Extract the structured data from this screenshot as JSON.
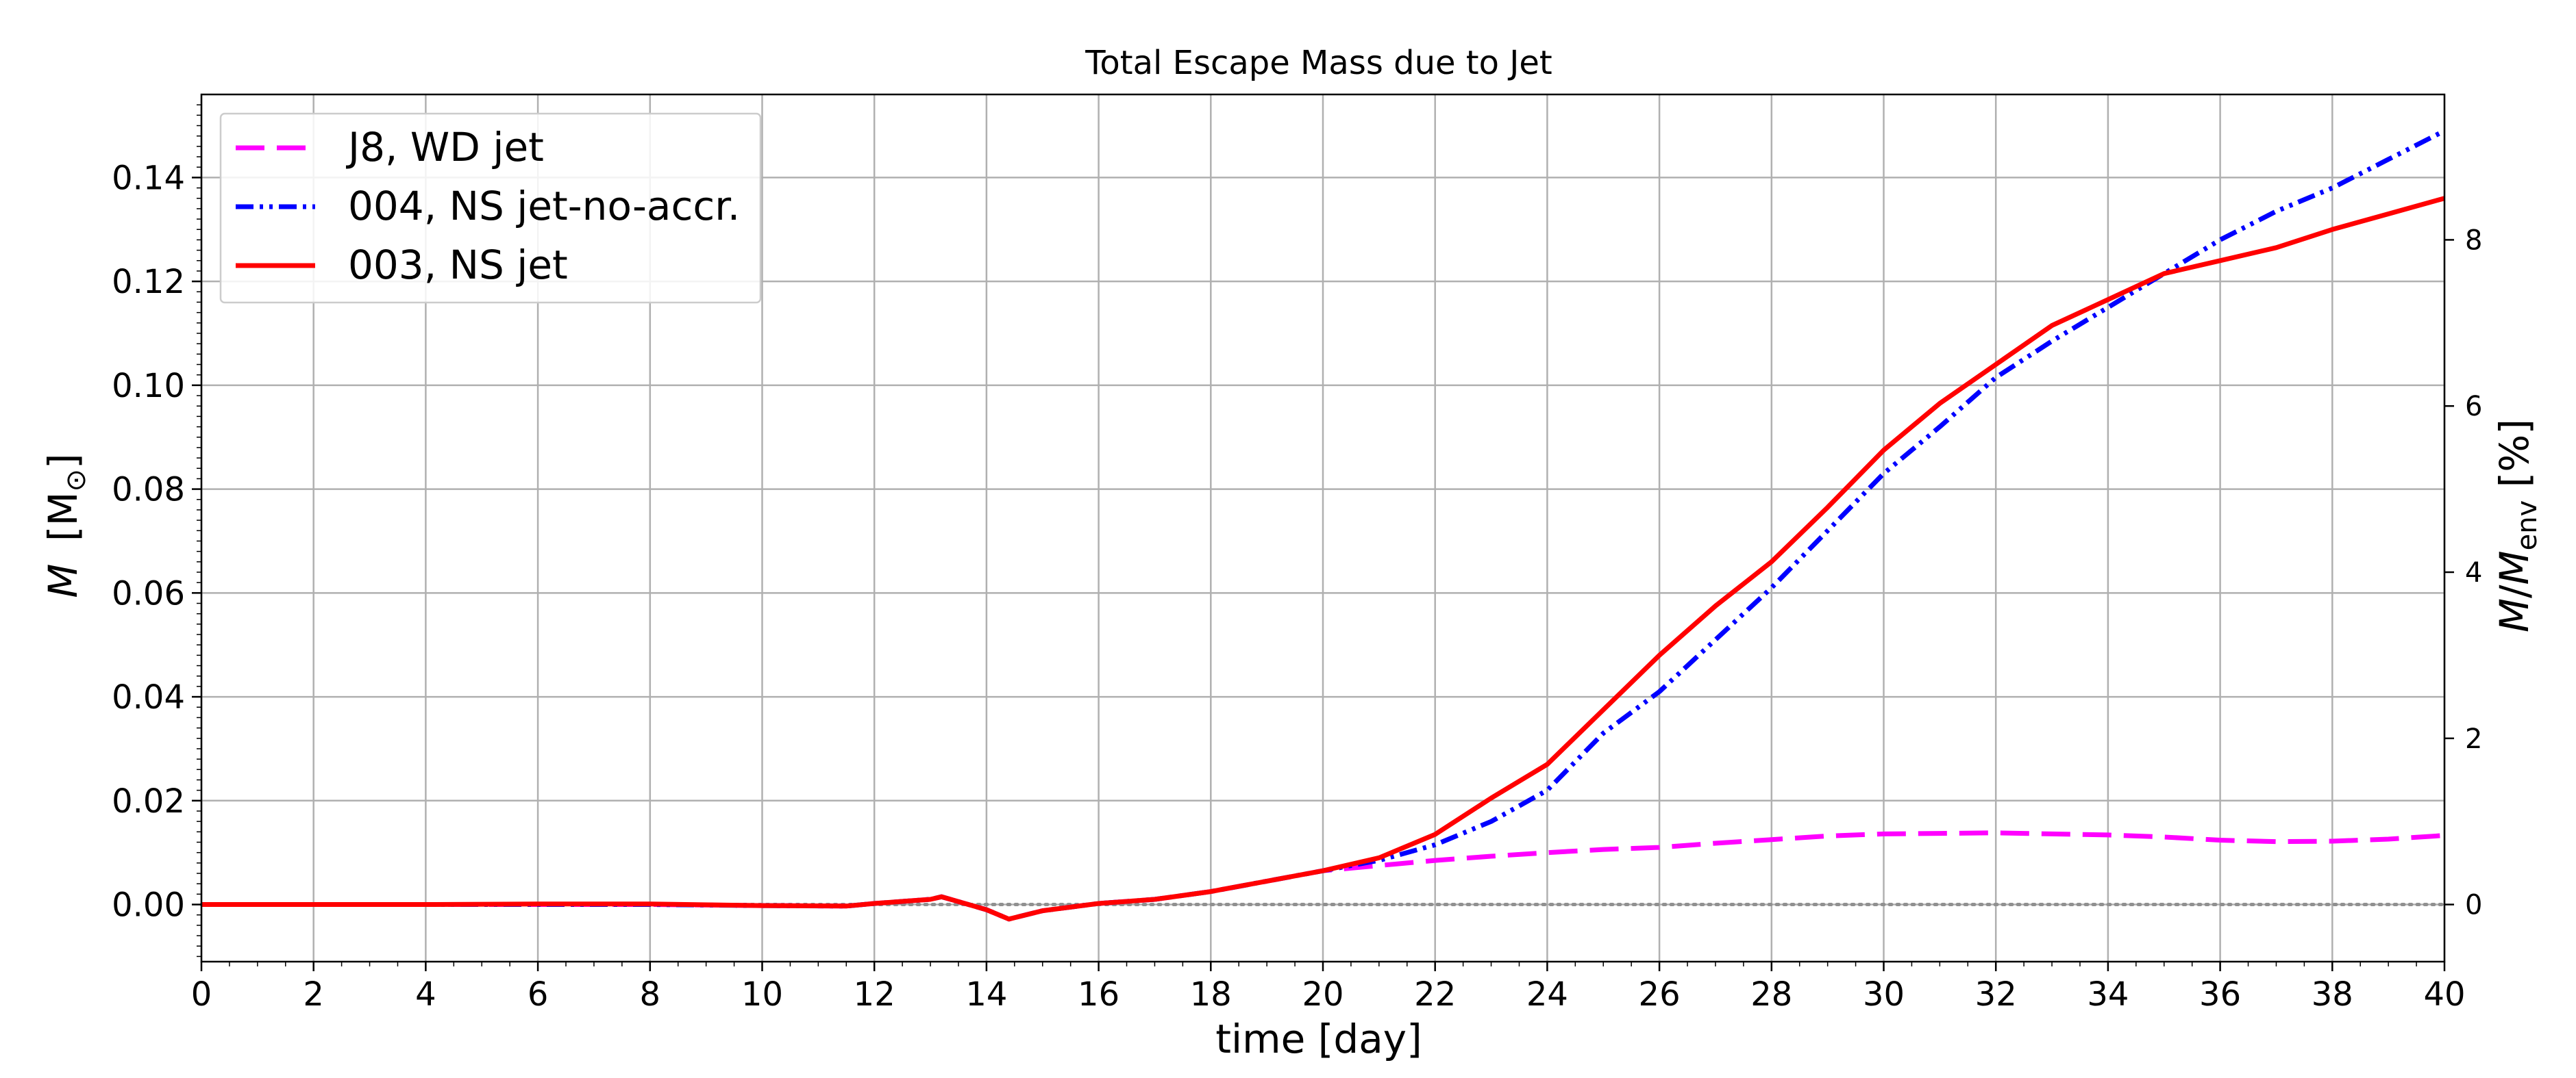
{
  "chart_data": {
    "type": "line",
    "title": "Total Escape Mass due to Jet",
    "xlabel": "time [day]",
    "ylabel_left": {
      "main": "M",
      "unit": "[M",
      "sub": "⊙",
      "close": "]"
    },
    "ylabel_right": {
      "num": "M",
      "sep": "/",
      "den": "M",
      "sub": "env",
      "unit": " [%]"
    },
    "xlim": [
      0,
      40
    ],
    "ylim": [
      -0.011,
      0.156
    ],
    "ylim_right_ratio_percent_per_unit": 62.5,
    "x_ticks": [
      "0",
      "2",
      "4",
      "6",
      "8",
      "10",
      "12",
      "14",
      "16",
      "18",
      "20",
      "22",
      "24",
      "26",
      "28",
      "30",
      "32",
      "34",
      "36",
      "38",
      "40"
    ],
    "y_ticks": [
      "0.00",
      "0.02",
      "0.04",
      "0.06",
      "0.08",
      "0.10",
      "0.12",
      "0.14"
    ],
    "y_ticks_right": [
      "0",
      "2",
      "4",
      "6",
      "8"
    ],
    "grid": true,
    "zero_line": true,
    "legend_position": "upper-left",
    "series": [
      {
        "name": "J8, WD jet",
        "color": "#ff00ff",
        "style": "dashed",
        "x": [
          0,
          2,
          4,
          6,
          8,
          10,
          11.5,
          12,
          13,
          13.2,
          14,
          14.4,
          15,
          16,
          17,
          18,
          19,
          20,
          21,
          22,
          23,
          24,
          25,
          26,
          27,
          28,
          29,
          30,
          31,
          32,
          33,
          34,
          35,
          36,
          37,
          38,
          39,
          40
        ],
        "y": [
          0,
          0,
          0,
          0,
          0,
          -0.0002,
          -0.0003,
          0.0002,
          0.001,
          0.0015,
          -0.001,
          -0.0028,
          -0.0012,
          0.0002,
          0.001,
          0.0025,
          0.0045,
          0.0065,
          0.0075,
          0.0085,
          0.0093,
          0.01,
          0.0106,
          0.011,
          0.0118,
          0.0125,
          0.0132,
          0.0136,
          0.0137,
          0.0138,
          0.0136,
          0.0134,
          0.013,
          0.0124,
          0.0121,
          0.0122,
          0.0126,
          0.0133
        ]
      },
      {
        "name": "004, NS jet-no-accr.",
        "color": "#0000ff",
        "style": "dashdotdot",
        "x": [
          0,
          2,
          4,
          6,
          8,
          10,
          11.5,
          12,
          13,
          13.2,
          14,
          14.4,
          15,
          16,
          17,
          18,
          19,
          20,
          21,
          22,
          23,
          24,
          25,
          26,
          27,
          28,
          29,
          30,
          31,
          32,
          33,
          34,
          35,
          36,
          37,
          38,
          39,
          40
        ],
        "y": [
          0,
          0,
          0,
          0,
          0,
          -0.0002,
          -0.0003,
          0.0002,
          0.001,
          0.0015,
          -0.001,
          -0.0028,
          -0.0012,
          0.0002,
          0.001,
          0.0025,
          0.0045,
          0.0065,
          0.0085,
          0.0115,
          0.016,
          0.022,
          0.033,
          0.041,
          0.051,
          0.061,
          0.072,
          0.083,
          0.092,
          0.1015,
          0.1085,
          0.115,
          0.1215,
          0.128,
          0.1335,
          0.138,
          0.1435,
          0.149
        ]
      },
      {
        "name": "003, NS jet",
        "color": "#ff0000",
        "style": "solid",
        "x": [
          0,
          2,
          4,
          6,
          8,
          10,
          11.5,
          12,
          13,
          13.2,
          14,
          14.4,
          15,
          16,
          17,
          18,
          19,
          20,
          21,
          22,
          23,
          24,
          25,
          26,
          27,
          28,
          29,
          30,
          31,
          32,
          33,
          34,
          35,
          36,
          37,
          38,
          39,
          40
        ],
        "y": [
          0,
          0,
          0,
          0.0001,
          0.0001,
          -0.0002,
          -0.0003,
          0.0002,
          0.001,
          0.0015,
          -0.001,
          -0.0028,
          -0.0012,
          0.0002,
          0.001,
          0.0025,
          0.0045,
          0.0065,
          0.009,
          0.0135,
          0.0205,
          0.027,
          0.0375,
          0.048,
          0.0575,
          0.066,
          0.0765,
          0.0875,
          0.0965,
          0.104,
          0.1115,
          0.1165,
          0.1215,
          0.124,
          0.1265,
          0.13,
          0.133,
          0.136
        ]
      }
    ]
  }
}
